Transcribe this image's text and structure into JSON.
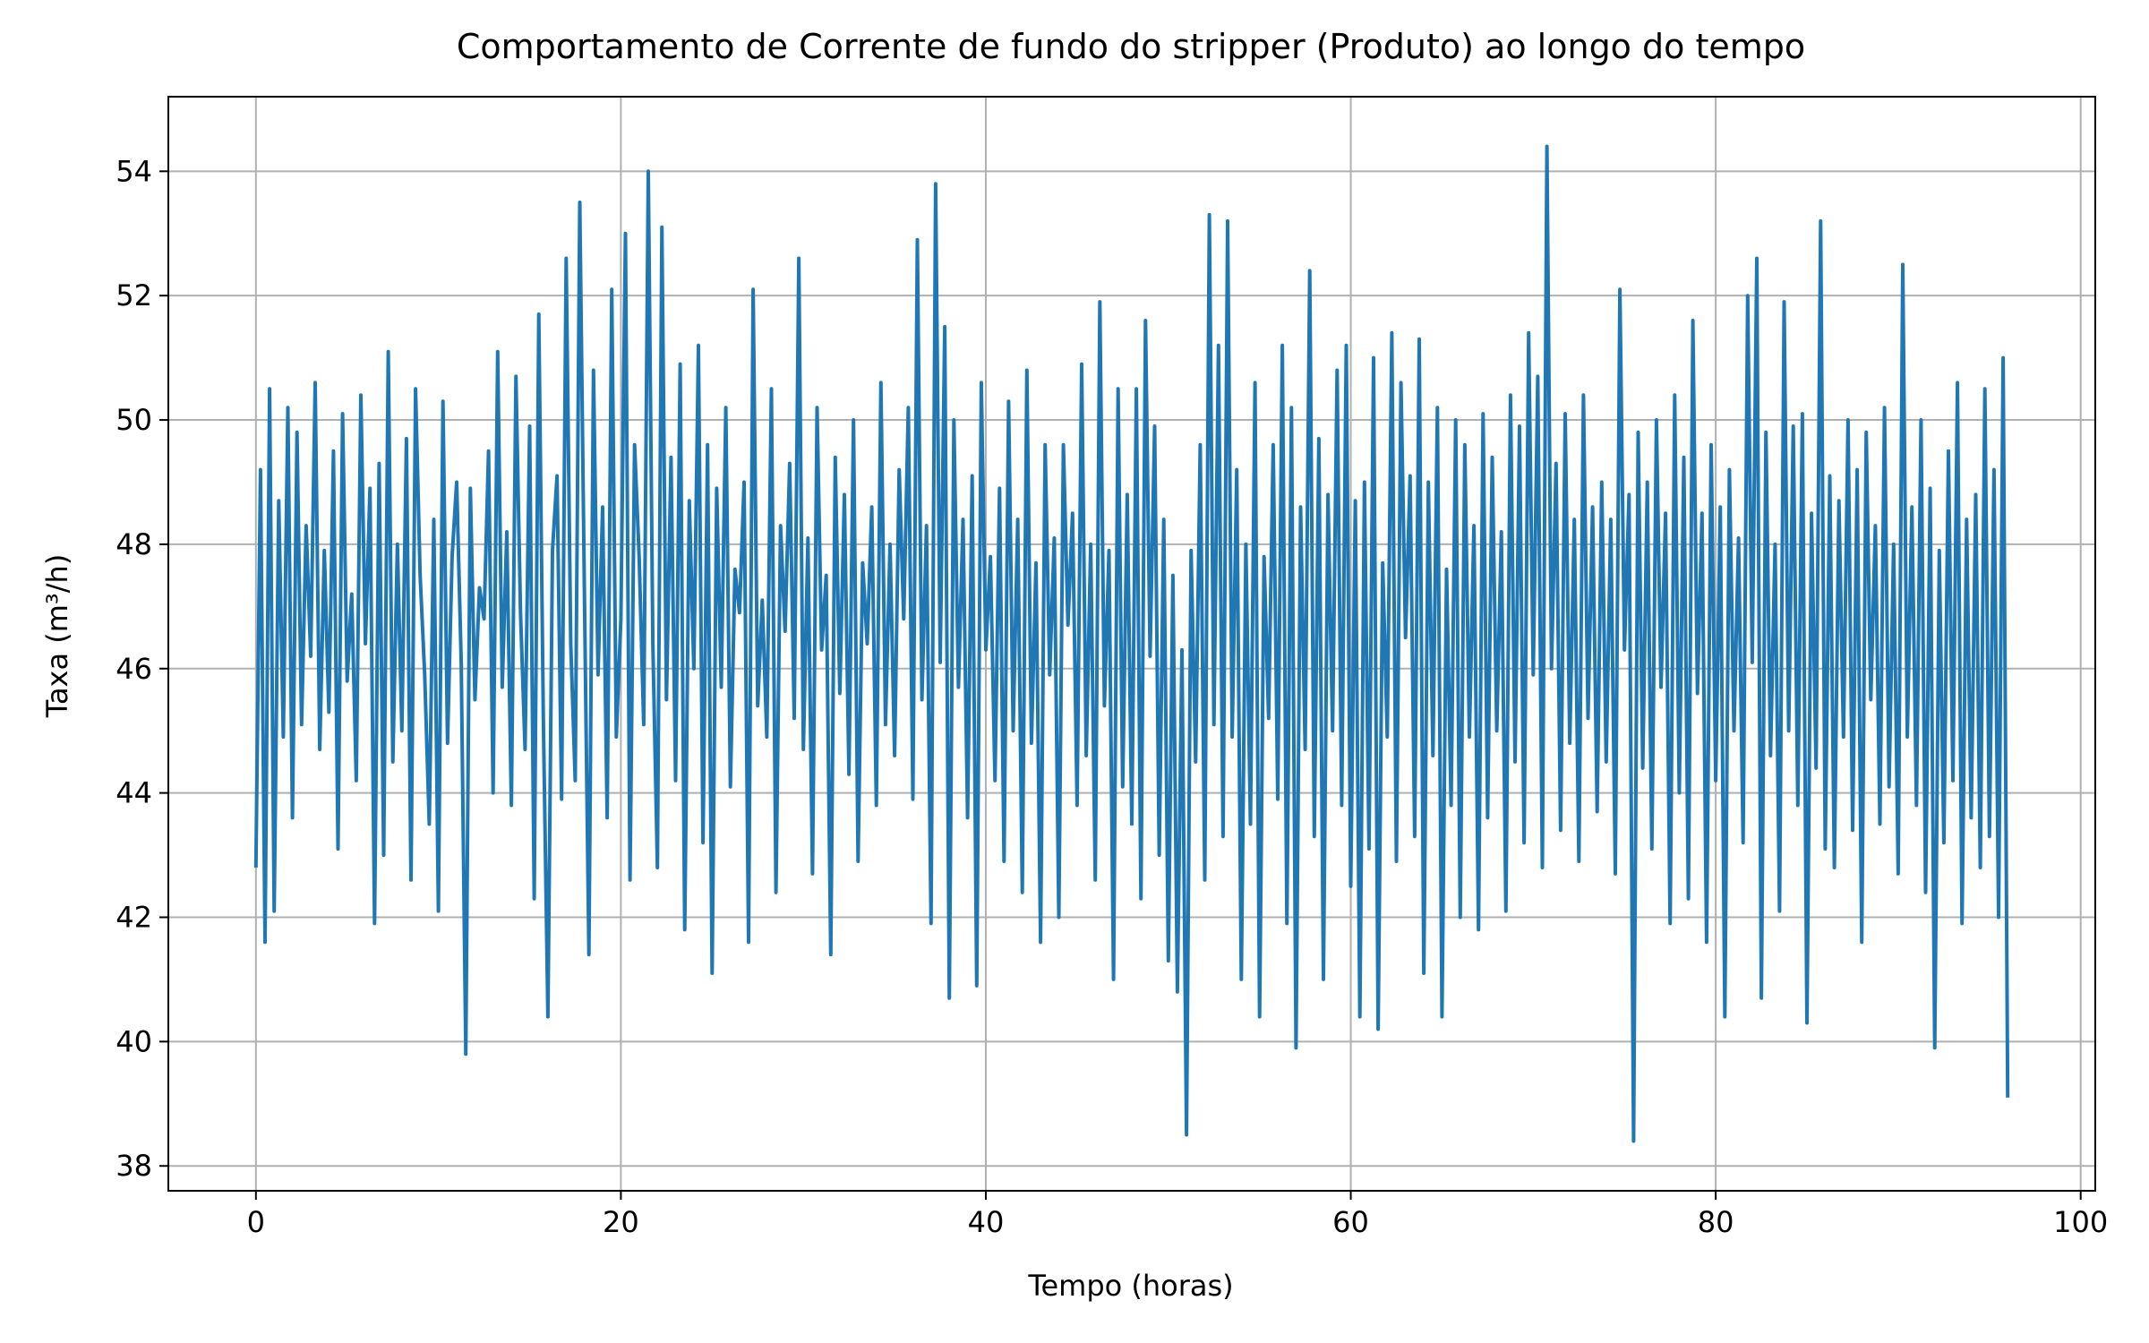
{
  "chart_data": {
    "type": "line",
    "title": "Comportamento de Corrente de fundo do stripper (Produto) ao longo do tempo",
    "xlabel": "Tempo (horas)",
    "ylabel": "Taxa (m³/h)",
    "xlim": [
      -4.8,
      100.8
    ],
    "ylim": [
      37.6,
      55.2
    ],
    "grid": true,
    "xticks": [
      0,
      20,
      40,
      60,
      80,
      100
    ],
    "yticks": [
      38,
      40,
      42,
      44,
      46,
      48,
      50,
      52,
      54
    ],
    "series": [
      {
        "color": "#1f77b4",
        "x": [
          0,
          0.25,
          0.5,
          0.75,
          1,
          1.25,
          1.5,
          1.75,
          2,
          2.25,
          2.5,
          2.75,
          3,
          3.25,
          3.5,
          3.75,
          4,
          4.25,
          4.5,
          4.75,
          5,
          5.25,
          5.5,
          5.75,
          6,
          6.25,
          6.5,
          6.75,
          7,
          7.25,
          7.5,
          7.75,
          8,
          8.25,
          8.5,
          8.75,
          9,
          9.25,
          9.5,
          9.75,
          10,
          10.25,
          10.5,
          10.75,
          11,
          11.25,
          11.5,
          11.75,
          12,
          12.25,
          12.5,
          12.75,
          13,
          13.25,
          13.5,
          13.75,
          14,
          14.25,
          14.5,
          14.75,
          15,
          15.25,
          15.5,
          15.75,
          16,
          16.25,
          16.5,
          16.75,
          17,
          17.25,
          17.5,
          17.75,
          18,
          18.25,
          18.5,
          18.75,
          19,
          19.25,
          19.5,
          19.75,
          20,
          20.25,
          20.5,
          20.75,
          21,
          21.25,
          21.5,
          21.75,
          22,
          22.25,
          22.5,
          22.75,
          23,
          23.25,
          23.5,
          23.75,
          24,
          24.25,
          24.5,
          24.75,
          25,
          25.25,
          25.5,
          25.75,
          26,
          26.25,
          26.5,
          26.75,
          27,
          27.25,
          27.5,
          27.75,
          28,
          28.25,
          28.5,
          28.75,
          29,
          29.25,
          29.5,
          29.75,
          30,
          30.25,
          30.5,
          30.75,
          31,
          31.25,
          31.5,
          31.75,
          32,
          32.25,
          32.5,
          32.75,
          33,
          33.25,
          33.5,
          33.75,
          34,
          34.25,
          34.5,
          34.75,
          35,
          35.25,
          35.5,
          35.75,
          36,
          36.25,
          36.5,
          36.75,
          37,
          37.25,
          37.5,
          37.75,
          38,
          38.25,
          38.5,
          38.75,
          39,
          39.25,
          39.5,
          39.75,
          40,
          40.25,
          40.5,
          40.75,
          41,
          41.25,
          41.5,
          41.75,
          42,
          42.25,
          42.5,
          42.75,
          43,
          43.25,
          43.5,
          43.75,
          44,
          44.25,
          44.5,
          44.75,
          45,
          45.25,
          45.5,
          45.75,
          46,
          46.25,
          46.5,
          46.75,
          47,
          47.25,
          47.5,
          47.75,
          48,
          48.25,
          48.5,
          48.75,
          49,
          49.25,
          49.5,
          49.75,
          50,
          50.25,
          50.5,
          50.75,
          51,
          51.25,
          51.5,
          51.75,
          52,
          52.25,
          52.5,
          52.75,
          53,
          53.25,
          53.5,
          53.75,
          54,
          54.25,
          54.5,
          54.75,
          55,
          55.25,
          55.5,
          55.75,
          56,
          56.25,
          56.5,
          56.75,
          57,
          57.25,
          57.5,
          57.75,
          58,
          58.25,
          58.5,
          58.75,
          59,
          59.25,
          59.5,
          59.75,
          60,
          60.25,
          60.5,
          60.75,
          61,
          61.25,
          61.5,
          61.75,
          62,
          62.25,
          62.5,
          62.75,
          63,
          63.25,
          63.5,
          63.75,
          64,
          64.25,
          64.5,
          64.75,
          65,
          65.25,
          65.5,
          65.75,
          66,
          66.25,
          66.5,
          66.75,
          67,
          67.25,
          67.5,
          67.75,
          68,
          68.25,
          68.5,
          68.75,
          69,
          69.25,
          69.5,
          69.75,
          70,
          70.25,
          70.5,
          70.75,
          71,
          71.25,
          71.5,
          71.75,
          72,
          72.25,
          72.5,
          72.75,
          73,
          73.25,
          73.5,
          73.75,
          74,
          74.25,
          74.5,
          74.75,
          75,
          75.25,
          75.5,
          75.75,
          76,
          76.25,
          76.5,
          76.75,
          77,
          77.25,
          77.5,
          77.75,
          78,
          78.25,
          78.5,
          78.75,
          79,
          79.25,
          79.5,
          79.75,
          80,
          80.25,
          80.5,
          80.75,
          81,
          81.25,
          81.5,
          81.75,
          82,
          82.25,
          82.5,
          82.75,
          83,
          83.25,
          83.5,
          83.75,
          84,
          84.25,
          84.5,
          84.75,
          85,
          85.25,
          85.5,
          85.75,
          86,
          86.25,
          86.5,
          86.75,
          87,
          87.25,
          87.5,
          87.75,
          88,
          88.25,
          88.5,
          88.75,
          89,
          89.25,
          89.5,
          89.75,
          90,
          90.25,
          90.5,
          90.75,
          91,
          91.25,
          91.5,
          91.75,
          92,
          92.25,
          92.5,
          92.75,
          93,
          93.25,
          93.5,
          93.75,
          94,
          94.25,
          94.5,
          94.75,
          95,
          95.25,
          95.5,
          95.75,
          96
        ],
        "y": [
          42.8,
          49.2,
          41.6,
          50.5,
          42.1,
          48.7,
          44.9,
          50.2,
          43.6,
          49.8,
          45.1,
          48.3,
          46.2,
          50.6,
          44.7,
          47.9,
          45.3,
          49.5,
          43.1,
          50.1,
          45.8,
          47.2,
          44.2,
          50.4,
          46.4,
          48.9,
          41.9,
          49.3,
          43.0,
          51.1,
          44.5,
          48.0,
          45.0,
          49.7,
          42.6,
          50.5,
          47.5,
          45.9,
          43.5,
          48.4,
          42.1,
          50.3,
          44.8,
          47.8,
          49.0,
          46.1,
          39.8,
          48.9,
          45.5,
          47.3,
          46.8,
          49.5,
          44.0,
          51.1,
          45.7,
          48.2,
          43.8,
          50.7,
          46.9,
          44.7,
          49.9,
          42.3,
          51.7,
          45.2,
          40.4,
          47.9,
          49.1,
          43.9,
          52.6,
          46.4,
          44.2,
          53.5,
          47.3,
          41.4,
          50.8,
          45.9,
          48.6,
          43.6,
          52.1,
          44.9,
          46.8,
          53.0,
          42.6,
          49.6,
          47.8,
          45.1,
          54.0,
          46.4,
          42.8,
          53.1,
          45.5,
          49.4,
          44.2,
          50.9,
          41.8,
          48.7,
          46.0,
          51.2,
          43.2,
          49.6,
          41.1,
          48.9,
          45.7,
          50.2,
          44.1,
          47.6,
          46.9,
          49.0,
          41.6,
          52.1,
          45.4,
          47.1,
          44.9,
          50.5,
          42.4,
          48.3,
          46.6,
          49.3,
          45.2,
          52.6,
          44.7,
          48.1,
          42.7,
          50.2,
          46.3,
          47.5,
          41.4,
          49.4,
          45.6,
          48.8,
          44.3,
          50.0,
          42.9,
          47.7,
          46.4,
          48.6,
          43.8,
          50.6,
          45.1,
          48.0,
          44.6,
          49.2,
          46.8,
          50.2,
          43.9,
          52.9,
          45.5,
          48.3,
          41.9,
          53.8,
          46.1,
          51.5,
          40.7,
          50.0,
          45.7,
          48.4,
          43.6,
          49.1,
          40.9,
          50.6,
          46.3,
          47.8,
          44.2,
          48.9,
          42.9,
          50.3,
          45.0,
          48.4,
          42.4,
          50.8,
          44.8,
          47.7,
          41.6,
          49.6,
          45.9,
          48.1,
          42.0,
          49.6,
          46.7,
          48.5,
          43.8,
          50.9,
          44.6,
          48.0,
          42.6,
          51.9,
          45.4,
          47.9,
          41.0,
          50.5,
          44.1,
          48.8,
          43.5,
          50.5,
          42.3,
          51.6,
          46.2,
          49.9,
          43.0,
          48.4,
          41.3,
          47.5,
          40.8,
          46.3,
          38.5,
          47.9,
          44.5,
          49.6,
          42.6,
          53.3,
          45.1,
          51.2,
          43.3,
          53.2,
          44.9,
          49.2,
          41.0,
          48.0,
          43.5,
          50.6,
          40.4,
          47.8,
          45.2,
          49.6,
          43.9,
          51.2,
          41.9,
          50.2,
          39.9,
          48.6,
          44.7,
          52.4,
          43.3,
          49.7,
          41.0,
          48.8,
          45.0,
          50.8,
          43.8,
          51.2,
          42.5,
          48.7,
          40.4,
          49.0,
          43.1,
          51.0,
          40.2,
          47.7,
          44.9,
          51.4,
          42.9,
          50.6,
          46.5,
          49.1,
          43.3,
          51.3,
          41.1,
          49.0,
          44.6,
          50.2,
          40.4,
          47.6,
          43.8,
          50.0,
          42.0,
          49.6,
          44.9,
          48.3,
          41.8,
          50.1,
          43.6,
          49.4,
          45.0,
          48.2,
          42.1,
          50.4,
          44.5,
          49.9,
          43.2,
          51.4,
          45.9,
          50.7,
          42.8,
          54.4,
          46.0,
          49.3,
          43.4,
          50.1,
          44.8,
          48.4,
          42.9,
          50.4,
          45.2,
          48.6,
          43.7,
          49.0,
          44.5,
          48.4,
          42.7,
          52.1,
          46.3,
          48.8,
          38.4,
          49.8,
          44.4,
          49.0,
          43.1,
          50.0,
          45.7,
          48.5,
          41.9,
          50.4,
          44.0,
          49.4,
          42.3,
          51.6,
          45.6,
          48.5,
          41.6,
          49.6,
          44.2,
          48.6,
          40.4,
          49.2,
          45.0,
          48.1,
          43.2,
          52.0,
          46.1,
          52.6,
          40.7,
          49.8,
          44.6,
          48.0,
          42.1,
          51.9,
          45.0,
          49.9,
          43.8,
          50.1,
          40.3,
          48.5,
          44.4,
          53.2,
          43.1,
          49.1,
          42.8,
          48.7,
          44.9,
          50.0,
          43.4,
          49.2,
          41.6,
          49.8,
          45.5,
          48.3,
          43.5,
          50.2,
          44.1,
          48.0,
          42.7,
          52.5,
          44.9,
          48.6,
          43.8,
          50.0,
          42.4,
          48.9,
          39.9,
          47.9,
          43.2,
          49.5,
          44.2,
          50.6,
          41.9,
          48.4,
          43.6,
          48.8,
          42.8,
          50.5,
          43.3,
          49.2,
          42.0,
          51.0,
          39.1
        ]
      }
    ]
  }
}
